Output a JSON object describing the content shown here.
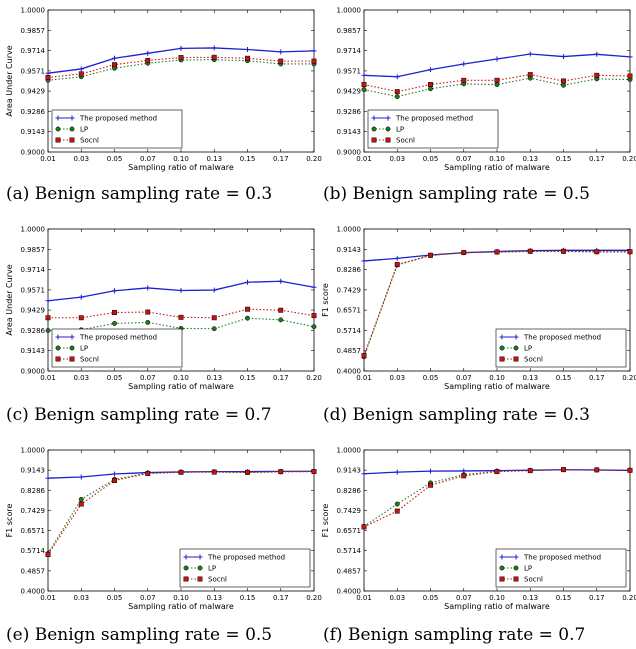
{
  "chart_data": [
    {
      "type": "line",
      "caption": "(a) Benign sampling rate = 0.3",
      "xlabel": "Sampling ratio of malware",
      "ylabel": "Area Under Curve",
      "categories": [
        "0.01",
        "0.03",
        "0.05",
        "0.07",
        "0.10",
        "0.13",
        "0.15",
        "0.17",
        "0.20"
      ],
      "yticks": [
        "0.9000",
        "0.9143",
        "0.9286",
        "0.9429",
        "0.9571",
        "0.9714",
        "0.9857",
        "1.0000"
      ],
      "ylim": [
        0.9,
        1.0
      ],
      "grid": false,
      "legend": "bottom-left",
      "series": [
        {
          "name": "The proposed method",
          "color": "#1f1fd0",
          "marker": "plus",
          "dash": "",
          "values": [
            0.9555,
            0.9585,
            0.966,
            0.9695,
            0.973,
            0.9733,
            0.9722,
            0.9705,
            0.9712
          ]
        },
        {
          "name": "LP",
          "color": "#1e7a1e",
          "marker": "circle",
          "dash": "1.5,2",
          "values": [
            0.9505,
            0.953,
            0.959,
            0.9625,
            0.9648,
            0.965,
            0.9643,
            0.962,
            0.962
          ]
        },
        {
          "name": "Socnl",
          "color": "#cc1111",
          "marker": "square",
          "dash": "1.5,2",
          "values": [
            0.9525,
            0.955,
            0.9615,
            0.9645,
            0.9665,
            0.9667,
            0.966,
            0.964,
            0.964
          ]
        }
      ]
    },
    {
      "type": "line",
      "caption": "(b) Benign sampling rate = 0.5",
      "xlabel": "Sampling ratio of malware",
      "ylabel": "",
      "categories": [
        "0.01",
        "0.03",
        "0.05",
        "0.07",
        "0.10",
        "0.13",
        "0.15",
        "0.17",
        "0.20"
      ],
      "yticks": [
        "0.9000",
        "0.9143",
        "0.9286",
        "0.9429",
        "0.9571",
        "0.9714",
        "0.9857",
        "1.0000"
      ],
      "ylim": [
        0.9,
        1.0
      ],
      "grid": false,
      "legend": "bottom-left",
      "series": [
        {
          "name": "The proposed method",
          "color": "#1f1fd0",
          "marker": "plus",
          "dash": "",
          "values": [
            0.954,
            0.953,
            0.958,
            0.962,
            0.9655,
            0.969,
            0.9672,
            0.9688,
            0.967
          ]
        },
        {
          "name": "LP",
          "color": "#1e7a1e",
          "marker": "circle",
          "dash": "1.5,2",
          "values": [
            0.944,
            0.939,
            0.9445,
            0.948,
            0.9475,
            0.952,
            0.947,
            0.9515,
            0.951
          ]
        },
        {
          "name": "Socnl",
          "color": "#cc1111",
          "marker": "square",
          "dash": "1.5,2",
          "values": [
            0.9475,
            0.9425,
            0.9475,
            0.9505,
            0.9505,
            0.9545,
            0.95,
            0.954,
            0.9535
          ]
        }
      ]
    },
    {
      "type": "line",
      "caption": "(c) Benign sampling rate = 0.7",
      "xlabel": "Sampling ratio of malware",
      "ylabel": "Area Under Curve",
      "categories": [
        "0.01",
        "0.03",
        "0.05",
        "0.07",
        "0.10",
        "0.13",
        "0.15",
        "0.17",
        "0.20"
      ],
      "yticks": [
        "0.9000",
        "0.9143",
        "0.9286",
        "0.9429",
        "0.9571",
        "0.9714",
        "0.9857",
        "1.0000"
      ],
      "ylim": [
        0.9,
        1.0
      ],
      "grid": false,
      "legend": "bottom-left",
      "series": [
        {
          "name": "The proposed method",
          "color": "#1f1fd0",
          "marker": "plus",
          "dash": "",
          "values": [
            0.9495,
            0.952,
            0.9565,
            0.9585,
            0.9567,
            0.957,
            0.9625,
            0.9632,
            0.959
          ]
        },
        {
          "name": "LP",
          "color": "#1e7a1e",
          "marker": "circle",
          "dash": "1.5,2",
          "values": [
            0.9285,
            0.929,
            0.9335,
            0.9342,
            0.93,
            0.9298,
            0.9372,
            0.936,
            0.9312
          ]
        },
        {
          "name": "Socnl",
          "color": "#cc1111",
          "marker": "square",
          "dash": "1.5,2",
          "values": [
            0.9375,
            0.9375,
            0.9412,
            0.9415,
            0.9378,
            0.9375,
            0.9435,
            0.9428,
            0.939
          ]
        }
      ]
    },
    {
      "type": "line",
      "caption": "(d) Benign sampling rate = 0.3",
      "xlabel": "Sampling ratio of malware",
      "ylabel": "F1 score",
      "categories": [
        "0.01",
        "0.03",
        "0.05",
        "0.07",
        "0.10",
        "0.13",
        "0.15",
        "0.17",
        "0.20"
      ],
      "yticks": [
        "0.4000",
        "0.4857",
        "0.5714",
        "0.6571",
        "0.7429",
        "0.8286",
        "0.9143",
        "1.0000"
      ],
      "ylim": [
        0.4,
        1.0
      ],
      "grid": false,
      "legend": "bottom-right",
      "series": [
        {
          "name": "The proposed method",
          "color": "#1f1fd0",
          "marker": "plus",
          "dash": "",
          "values": [
            0.865,
            0.876,
            0.89,
            0.9,
            0.905,
            0.9085,
            0.91,
            0.91,
            0.91
          ]
        },
        {
          "name": "LP",
          "color": "#1e7a1e",
          "marker": "circle",
          "dash": "1.5,2",
          "values": [
            0.46,
            0.848,
            0.888,
            0.9,
            0.902,
            0.905,
            0.905,
            0.903,
            0.903
          ]
        },
        {
          "name": "Socnl",
          "color": "#cc1111",
          "marker": "square",
          "dash": "1.5,2",
          "values": [
            0.465,
            0.85,
            0.889,
            0.9005,
            0.903,
            0.906,
            0.906,
            0.904,
            0.904
          ]
        }
      ]
    },
    {
      "type": "line",
      "caption": "(e) Benign sampling rate = 0.5",
      "xlabel": "Sampling ratio of malware",
      "ylabel": "F1 score",
      "categories": [
        "0.01",
        "0.03",
        "0.05",
        "0.07",
        "0.10",
        "0.13",
        "0.15",
        "0.17",
        "0.20"
      ],
      "yticks": [
        "0.4000",
        "0.4857",
        "0.5714",
        "0.6571",
        "0.7429",
        "0.8286",
        "0.9143",
        "1.0000"
      ],
      "ylim": [
        0.4,
        1.0
      ],
      "grid": false,
      "legend": "bottom-right",
      "series": [
        {
          "name": "The proposed method",
          "color": "#1f1fd0",
          "marker": "plus",
          "dash": "",
          "values": [
            0.88,
            0.885,
            0.898,
            0.904,
            0.907,
            0.908,
            0.908,
            0.909,
            0.9095
          ]
        },
        {
          "name": "LP",
          "color": "#1e7a1e",
          "marker": "circle",
          "dash": "1.5,2",
          "values": [
            0.56,
            0.79,
            0.875,
            0.902,
            0.906,
            0.907,
            0.904,
            0.907,
            0.908
          ]
        },
        {
          "name": "Socnl",
          "color": "#cc1111",
          "marker": "square",
          "dash": "1.5,2",
          "values": [
            0.555,
            0.77,
            0.87,
            0.9,
            0.905,
            0.906,
            0.905,
            0.908,
            0.9085
          ]
        }
      ]
    },
    {
      "type": "line",
      "caption": "(f) Benign sampling rate = 0.7",
      "xlabel": "Sampling ratio of malware",
      "ylabel": "F1 score",
      "categories": [
        "0.01",
        "0.03",
        "0.05",
        "0.07",
        "0.10",
        "0.13",
        "0.15",
        "0.17",
        "0.20"
      ],
      "yticks": [
        "0.4000",
        "0.4857",
        "0.5714",
        "0.6571",
        "0.7429",
        "0.8286",
        "0.9143",
        "1.0000"
      ],
      "ylim": [
        0.4,
        1.0
      ],
      "grid": false,
      "legend": "bottom-right",
      "series": [
        {
          "name": "The proposed method",
          "color": "#1f1fd0",
          "marker": "plus",
          "dash": "",
          "values": [
            0.899,
            0.906,
            0.91,
            0.911,
            0.912,
            0.914,
            0.916,
            0.915,
            0.913
          ]
        },
        {
          "name": "LP",
          "color": "#1e7a1e",
          "marker": "circle",
          "dash": "1.5,2",
          "values": [
            0.675,
            0.77,
            0.86,
            0.895,
            0.909,
            0.913,
            0.917,
            0.916,
            0.914
          ]
        },
        {
          "name": "Socnl",
          "color": "#cc1111",
          "marker": "square",
          "dash": "1.5,2",
          "values": [
            0.673,
            0.74,
            0.85,
            0.89,
            0.908,
            0.912,
            0.9165,
            0.9155,
            0.9135
          ]
        }
      ]
    }
  ]
}
